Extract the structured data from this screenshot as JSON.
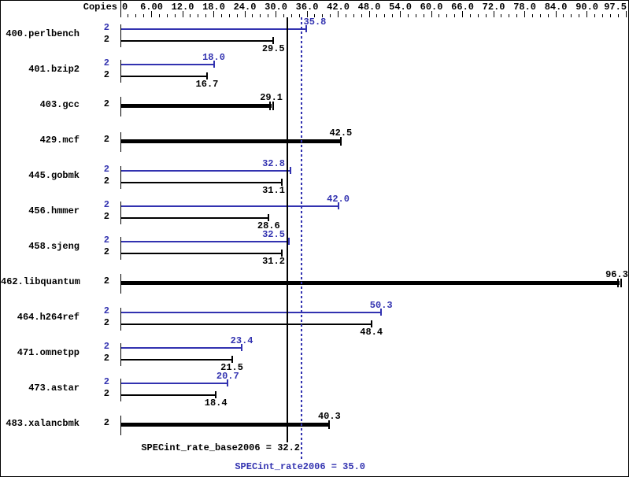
{
  "chart_data": {
    "type": "bar",
    "orientation": "horizontal",
    "copies_column_header": "Copies",
    "x_axis": {
      "min": 0,
      "max": 97.5,
      "minor_tick_step": 1.5,
      "major_tick_values": [
        0,
        6,
        12,
        18,
        24,
        30,
        36,
        42,
        48,
        54,
        60,
        66,
        72,
        78,
        84,
        90,
        97.5
      ],
      "major_tick_labels": [
        "0",
        "6.00",
        "12.0",
        "18.0",
        "24.0",
        "30.0",
        "36.0",
        "42.0",
        "48.0",
        "54.0",
        "60.0",
        "66.0",
        "72.0",
        "78.0",
        "84.0",
        "90.0",
        "97.5"
      ]
    },
    "series": [
      {
        "name": "peak",
        "color": "#3232b0"
      },
      {
        "name": "base",
        "color": "#000000"
      }
    ],
    "benchmarks": [
      {
        "name": "400.perlbench",
        "style": "pair",
        "peak_copies": "2",
        "base_copies": "2",
        "peak": 35.8,
        "base": 29.5
      },
      {
        "name": "401.bzip2",
        "style": "pair",
        "peak_copies": "2",
        "base_copies": "2",
        "peak": 18.0,
        "base": 16.7
      },
      {
        "name": "403.gcc",
        "style": "single",
        "copies": "2",
        "value": 29.1,
        "double_cap": true
      },
      {
        "name": "429.mcf",
        "style": "single",
        "copies": "2",
        "value": 42.5,
        "double_cap": false
      },
      {
        "name": "445.gobmk",
        "style": "pair",
        "peak_copies": "2",
        "base_copies": "2",
        "peak": 32.8,
        "base": 31.1
      },
      {
        "name": "456.hmmer",
        "style": "pair",
        "peak_copies": "2",
        "base_copies": "2",
        "peak": 42.0,
        "base": 28.6
      },
      {
        "name": "458.sjeng",
        "style": "pair",
        "peak_copies": "2",
        "base_copies": "2",
        "peak": 32.5,
        "base": 31.2
      },
      {
        "name": "462.libquantum",
        "style": "single",
        "copies": "2",
        "value": 96.3,
        "double_cap": true
      },
      {
        "name": "464.h264ref",
        "style": "pair",
        "peak_copies": "2",
        "base_copies": "2",
        "peak": 50.3,
        "base": 48.4
      },
      {
        "name": "471.omnetpp",
        "style": "pair",
        "peak_copies": "2",
        "base_copies": "2",
        "peak": 23.4,
        "base": 21.5
      },
      {
        "name": "473.astar",
        "style": "pair",
        "peak_copies": "2",
        "base_copies": "2",
        "peak": 20.7,
        "base": 18.4
      },
      {
        "name": "483.xalancbmk",
        "style": "single",
        "copies": "2",
        "value": 40.3,
        "double_cap": false
      }
    ],
    "reference_lines": [
      {
        "name": "base_mean",
        "label": "SPECint_rate_base2006 = 32.2",
        "value": 32.2,
        "line_style": "solid",
        "color": "#000000"
      },
      {
        "name": "peak_mean",
        "label": "SPECint_rate2006 = 35.0",
        "value": 35.0,
        "line_style": "dotted",
        "color": "#3232b0"
      }
    ],
    "colors": {
      "background": "#ffffff",
      "border": "#000000",
      "peak": "#3232b0",
      "base": "#000000"
    }
  }
}
